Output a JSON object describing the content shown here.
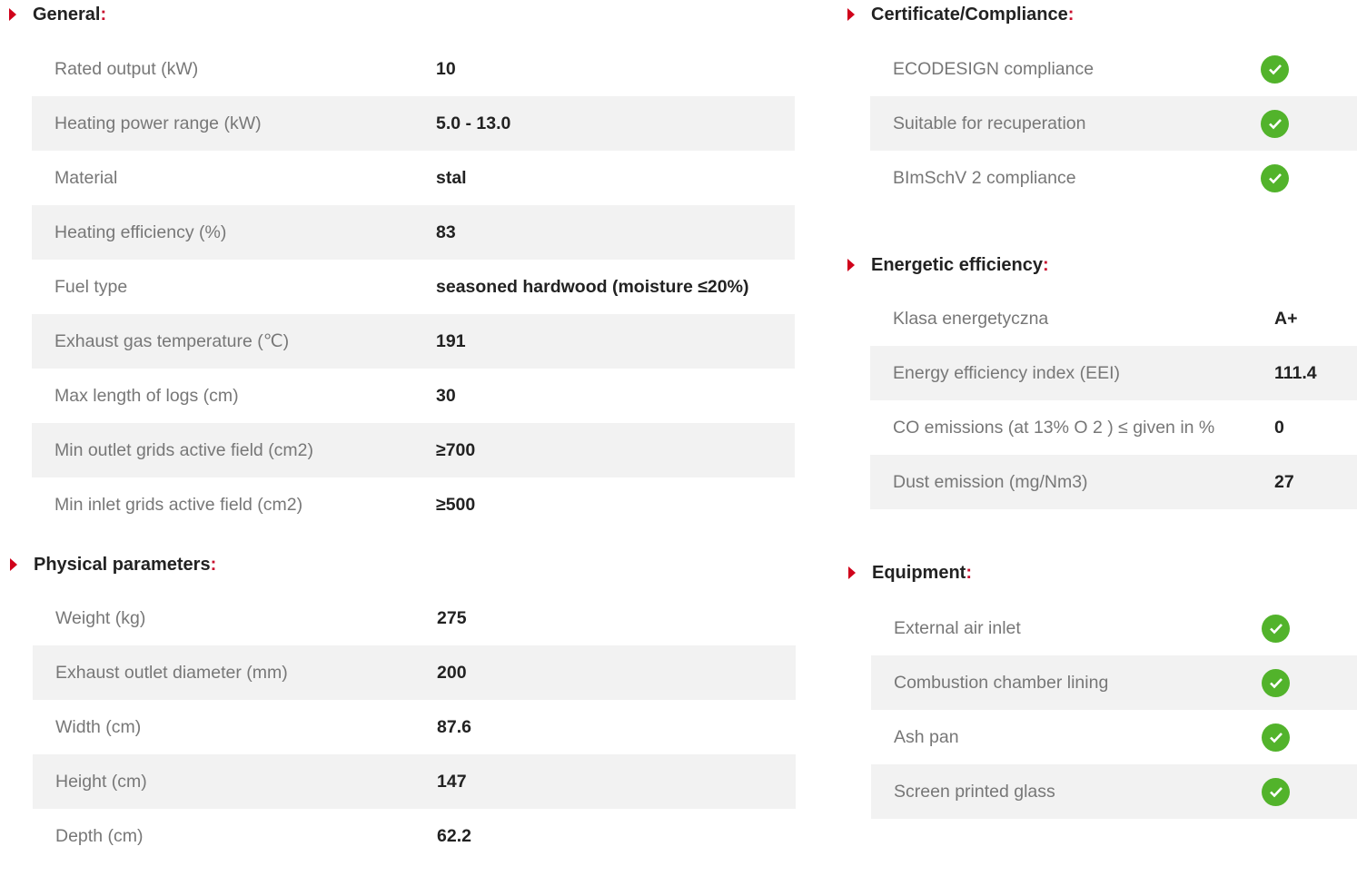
{
  "colors": {
    "accent": "#d0021b",
    "stripe": "#f2f2f2",
    "check": "#52b32b"
  },
  "general": {
    "title": "General",
    "colon": ":",
    "rows": [
      {
        "label": "Rated output (kW)",
        "value": "10"
      },
      {
        "label": "Heating power range (kW)",
        "value": "5.0 - 13.0"
      },
      {
        "label": "Material",
        "value": "stal"
      },
      {
        "label": "Heating efficiency (%)",
        "value": "83"
      },
      {
        "label": "Fuel type",
        "value": "seasoned hardwood (moisture ≤20%)"
      },
      {
        "label": "Exhaust gas temperature (℃)",
        "value": "191"
      },
      {
        "label": "Max length of logs (cm)",
        "value": "30"
      },
      {
        "label": "Min outlet grids active field (cm2)",
        "value": "≥700"
      },
      {
        "label": "Min inlet grids active field (cm2)",
        "value": "≥500"
      }
    ]
  },
  "physical": {
    "title": "Physical parameters",
    "colon": ":",
    "rows": [
      {
        "label": "Weight (kg)",
        "value": "275"
      },
      {
        "label": "Exhaust outlet diameter (mm)",
        "value": "200"
      },
      {
        "label": "Width (cm)",
        "value": "87.6"
      },
      {
        "label": "Height (cm)",
        "value": "147"
      },
      {
        "label": "Depth (cm)",
        "value": "62.2"
      }
    ]
  },
  "certificate": {
    "title": "Certificate/Compliance",
    "colon": ":",
    "rows": [
      {
        "label": "ECODESIGN compliance",
        "icon": "check-icon"
      },
      {
        "label": "Suitable for recuperation",
        "icon": "check-icon"
      },
      {
        "label": "BImSchV 2 compliance",
        "icon": "check-icon"
      }
    ]
  },
  "energetic": {
    "title": "Energetic efficiency",
    "colon": ":",
    "rows": [
      {
        "label": "Klasa energetyczna",
        "value": "A+"
      },
      {
        "label": "Energy efficiency index (EEI)",
        "value": "111.4"
      },
      {
        "label": "CO emissions (at 13% O 2 ) ≤ given in %",
        "value": "0"
      },
      {
        "label": "Dust emission (mg/Nm3)",
        "value": "27"
      }
    ]
  },
  "equipment": {
    "title": "Equipment",
    "colon": ":",
    "rows": [
      {
        "label": "External air inlet",
        "icon": "check-icon"
      },
      {
        "label": "Combustion chamber lining",
        "icon": "check-icon"
      },
      {
        "label": "Ash pan",
        "icon": "check-icon"
      },
      {
        "label": "Screen printed glass",
        "icon": "check-icon"
      }
    ]
  }
}
